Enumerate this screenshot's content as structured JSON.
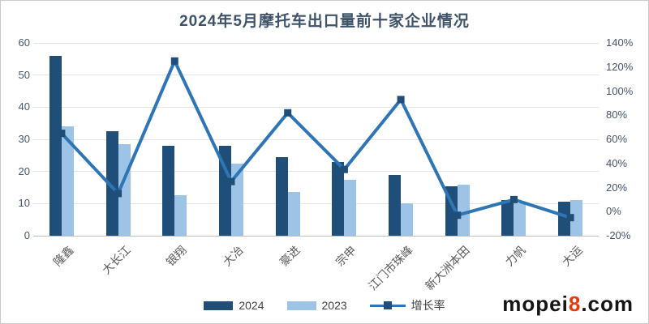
{
  "title": "2024年5月摩托车出口量前十家企业情况",
  "watermark": {
    "prefix": "mopei",
    "accent": "8",
    "suffix": ".com",
    "accent_color": "#e8390f"
  },
  "colors": {
    "bar_2024": "#1f4e79",
    "bar_2023": "#9dc3e6",
    "line": "#2e75b6",
    "marker": "#1f4e79",
    "grid": "#e4e4e4",
    "axis_line": "#bdbdbd",
    "title_text": "#3e5369",
    "tick_text": "#44546a",
    "category_text": "#595959"
  },
  "chart_data": {
    "type": "bar",
    "subtype": "combo-bar-line-dual-axis",
    "title": "2024年5月摩托车出口量前十家企业情况",
    "categories": [
      "隆鑫",
      "大长江",
      "银翔",
      "大冶",
      "豪进",
      "宗申",
      "江门市珠峰",
      "新大洲本田",
      "力帆",
      "大运"
    ],
    "series": [
      {
        "name": "2024",
        "type": "bar",
        "axis": "left",
        "values": [
          56,
          32.5,
          28,
          28,
          24.5,
          23,
          19,
          15.5,
          11,
          10.5
        ]
      },
      {
        "name": "2023",
        "type": "bar",
        "axis": "left",
        "values": [
          34,
          28.5,
          12.5,
          22.5,
          13.5,
          17.5,
          10,
          16,
          10,
          11
        ]
      },
      {
        "name": "增长率",
        "type": "line",
        "axis": "right",
        "unit": "%",
        "values": [
          65,
          15,
          125,
          25,
          82,
          35,
          93,
          -3,
          10,
          -5
        ]
      }
    ],
    "left_axis": {
      "min": 0,
      "max": 60,
      "tick_step": 10,
      "labels": [
        "60",
        "50",
        "40",
        "30",
        "20",
        "10",
        "0"
      ]
    },
    "right_axis": {
      "min": -20,
      "max": 140,
      "tick_step": 20,
      "labels": [
        "140%",
        "120%",
        "100%",
        "80%",
        "60%",
        "40%",
        "20%",
        "0%",
        "-20%"
      ]
    },
    "grid": "horizontal",
    "legend_position": "bottom-center"
  }
}
